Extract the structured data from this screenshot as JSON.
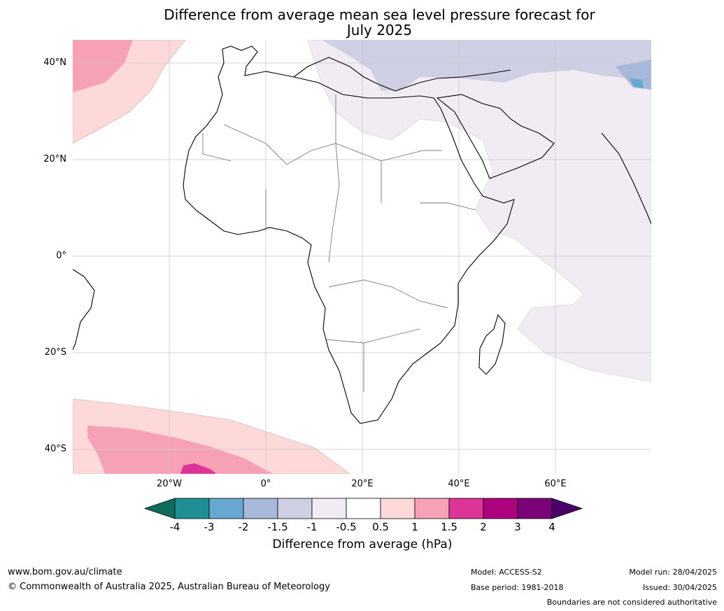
{
  "title_line1": "Difference from average mean sea level pressure forecast for",
  "title_line2": "July 2025",
  "lat_labels": [
    "40°N",
    "20°N",
    "0°",
    "20°S",
    "40°S"
  ],
  "lon_labels": [
    "20°W",
    "0°",
    "20°E",
    "40°E",
    "60°E"
  ],
  "colorbar": {
    "label": "Difference from average (hPa)",
    "ticks": [
      "-4",
      "-3",
      "-2",
      "-1.5",
      "-1",
      "-0.5",
      "0.5",
      "1",
      "1.5",
      "2",
      "3",
      "4"
    ],
    "colors": {
      "below_min": "#0f6b5c",
      "bins": [
        "#1f8f95",
        "#67a8d1",
        "#a8b8d9",
        "#cfcfe3",
        "#f1ebf4",
        "#ffffff",
        "#fdd9da",
        "#f7a1b7",
        "#dd3497",
        "#ae017e",
        "#7a0177"
      ],
      "above_max": "#49006a"
    }
  },
  "footer": {
    "url": "www.bom.gov.au/climate",
    "copyright": "© Commonwealth of Australia 2025, Australian Bureau of Meteorology",
    "model": "Model: ACCESS-S2",
    "base_period": "Base period: 1981-2018",
    "model_run": "Model run: 28/04/2025",
    "issued": "Issued: 30/04/2025",
    "disclaimer": "Boundaries are not considered authoritative"
  }
}
